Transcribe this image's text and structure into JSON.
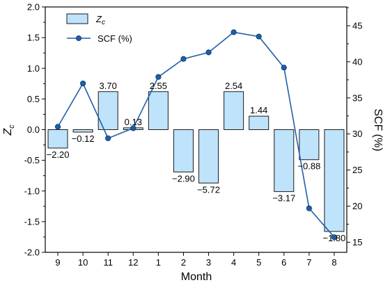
{
  "chart_data": {
    "type": "bar+line",
    "categories": [
      "9",
      "10",
      "11",
      "12",
      "1",
      "2",
      "3",
      "4",
      "5",
      "6",
      "7",
      "8"
    ],
    "xlabel": "Month",
    "ylabel_left": "Zc",
    "ylabel_right": "SCF (%)",
    "ylim_left": [
      -2.0,
      2.0
    ],
    "yticks_left": [
      "-2.0",
      "-1.5",
      "-1.0",
      "-0.5",
      "0.0",
      "0.5",
      "1.0",
      "1.5",
      "2.0"
    ],
    "ylim_right": [
      13.6,
      47.6
    ],
    "yticks_right": [
      "15",
      "20",
      "25",
      "30",
      "35",
      "40",
      "45"
    ],
    "series": [
      {
        "name": "Zc",
        "kind": "bar",
        "values": [
          -0.3,
          -0.04,
          0.62,
          0.03,
          0.62,
          -0.69,
          -0.87,
          0.62,
          0.22,
          -1.01,
          -0.49,
          -1.66
        ],
        "labels": [
          "−2.20",
          "−0.12",
          "3.70",
          "0.13",
          "2.55",
          "−2.90",
          "−5.72",
          "2.54",
          "1.44",
          "−3.17",
          "−0.88",
          "−1.80"
        ]
      },
      {
        "name": "SCF (%)",
        "kind": "line",
        "values": [
          31.0,
          37.0,
          29.4,
          30.8,
          37.9,
          40.4,
          41.3,
          44.1,
          43.5,
          39.2,
          19.7,
          15.7
        ]
      }
    ],
    "legend": {
      "placement": "top-left",
      "entries": [
        "Zc",
        "SCF (%)"
      ]
    },
    "grid": false,
    "colors": {
      "bar_fill": "#bfe3fb",
      "bar_stroke": "#1a1a1a",
      "line": "#1f5fa6",
      "marker": "#1f5fa6"
    }
  }
}
